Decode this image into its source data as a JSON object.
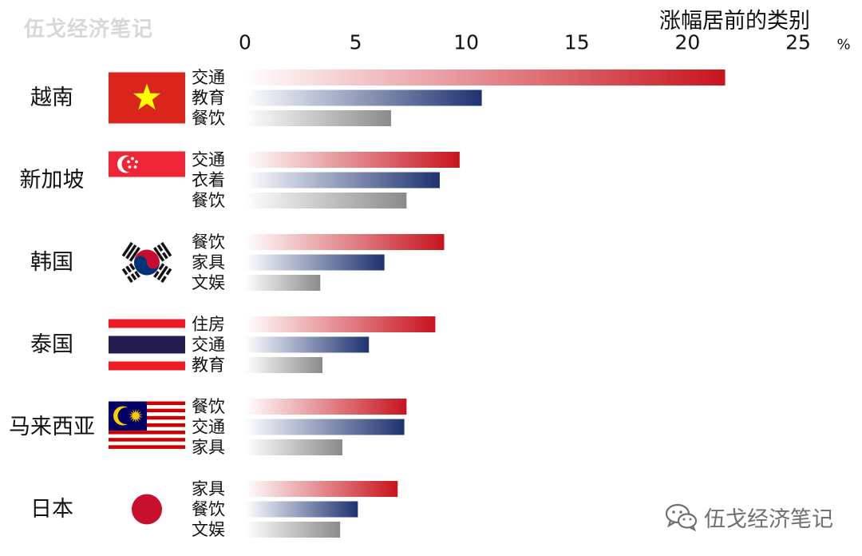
{
  "watermark": "伍戈经济笔记",
  "wechat_watermark": "伍戈经济笔记",
  "chart_data": {
    "type": "bar",
    "orientation": "horizontal",
    "title": "涨幅居前的类别",
    "unit": "%",
    "xlim": [
      0,
      25
    ],
    "xticks": [
      "0",
      "5",
      "10",
      "15",
      "20",
      "25"
    ],
    "grid": false,
    "legend": "none",
    "groups": [
      {
        "country": "越南",
        "flag": "vietnam-flag",
        "bars": [
          {
            "label": "交通",
            "value": 21.7
          },
          {
            "label": "教育",
            "value": 10.7
          },
          {
            "label": "餐饮",
            "value": 6.6
          }
        ]
      },
      {
        "country": "新加坡",
        "flag": "singapore-flag",
        "bars": [
          {
            "label": "交通",
            "value": 9.7
          },
          {
            "label": "衣着",
            "value": 8.8
          },
          {
            "label": "餐饮",
            "value": 7.3
          }
        ]
      },
      {
        "country": "韩国",
        "flag": "korea-flag",
        "bars": [
          {
            "label": "餐饮",
            "value": 9.0
          },
          {
            "label": "家具",
            "value": 6.3
          },
          {
            "label": "文娱",
            "value": 3.4
          }
        ]
      },
      {
        "country": "泰国",
        "flag": "thailand-flag",
        "bars": [
          {
            "label": "住房",
            "value": 8.6
          },
          {
            "label": "交通",
            "value": 5.6
          },
          {
            "label": "教育",
            "value": 3.5
          }
        ]
      },
      {
        "country": "马来西亚",
        "flag": "malaysia-flag",
        "bars": [
          {
            "label": "餐饮",
            "value": 7.3
          },
          {
            "label": "交通",
            "value": 7.2
          },
          {
            "label": "家具",
            "value": 4.4
          }
        ]
      },
      {
        "country": "日本",
        "flag": "japan-flag",
        "bars": [
          {
            "label": "家具",
            "value": 6.9
          },
          {
            "label": "餐饮",
            "value": 5.1
          },
          {
            "label": "文娱",
            "value": 4.3
          }
        ]
      }
    ],
    "series_colors": [
      "#c8141e",
      "#1d3270",
      "#8a8a8a"
    ]
  }
}
